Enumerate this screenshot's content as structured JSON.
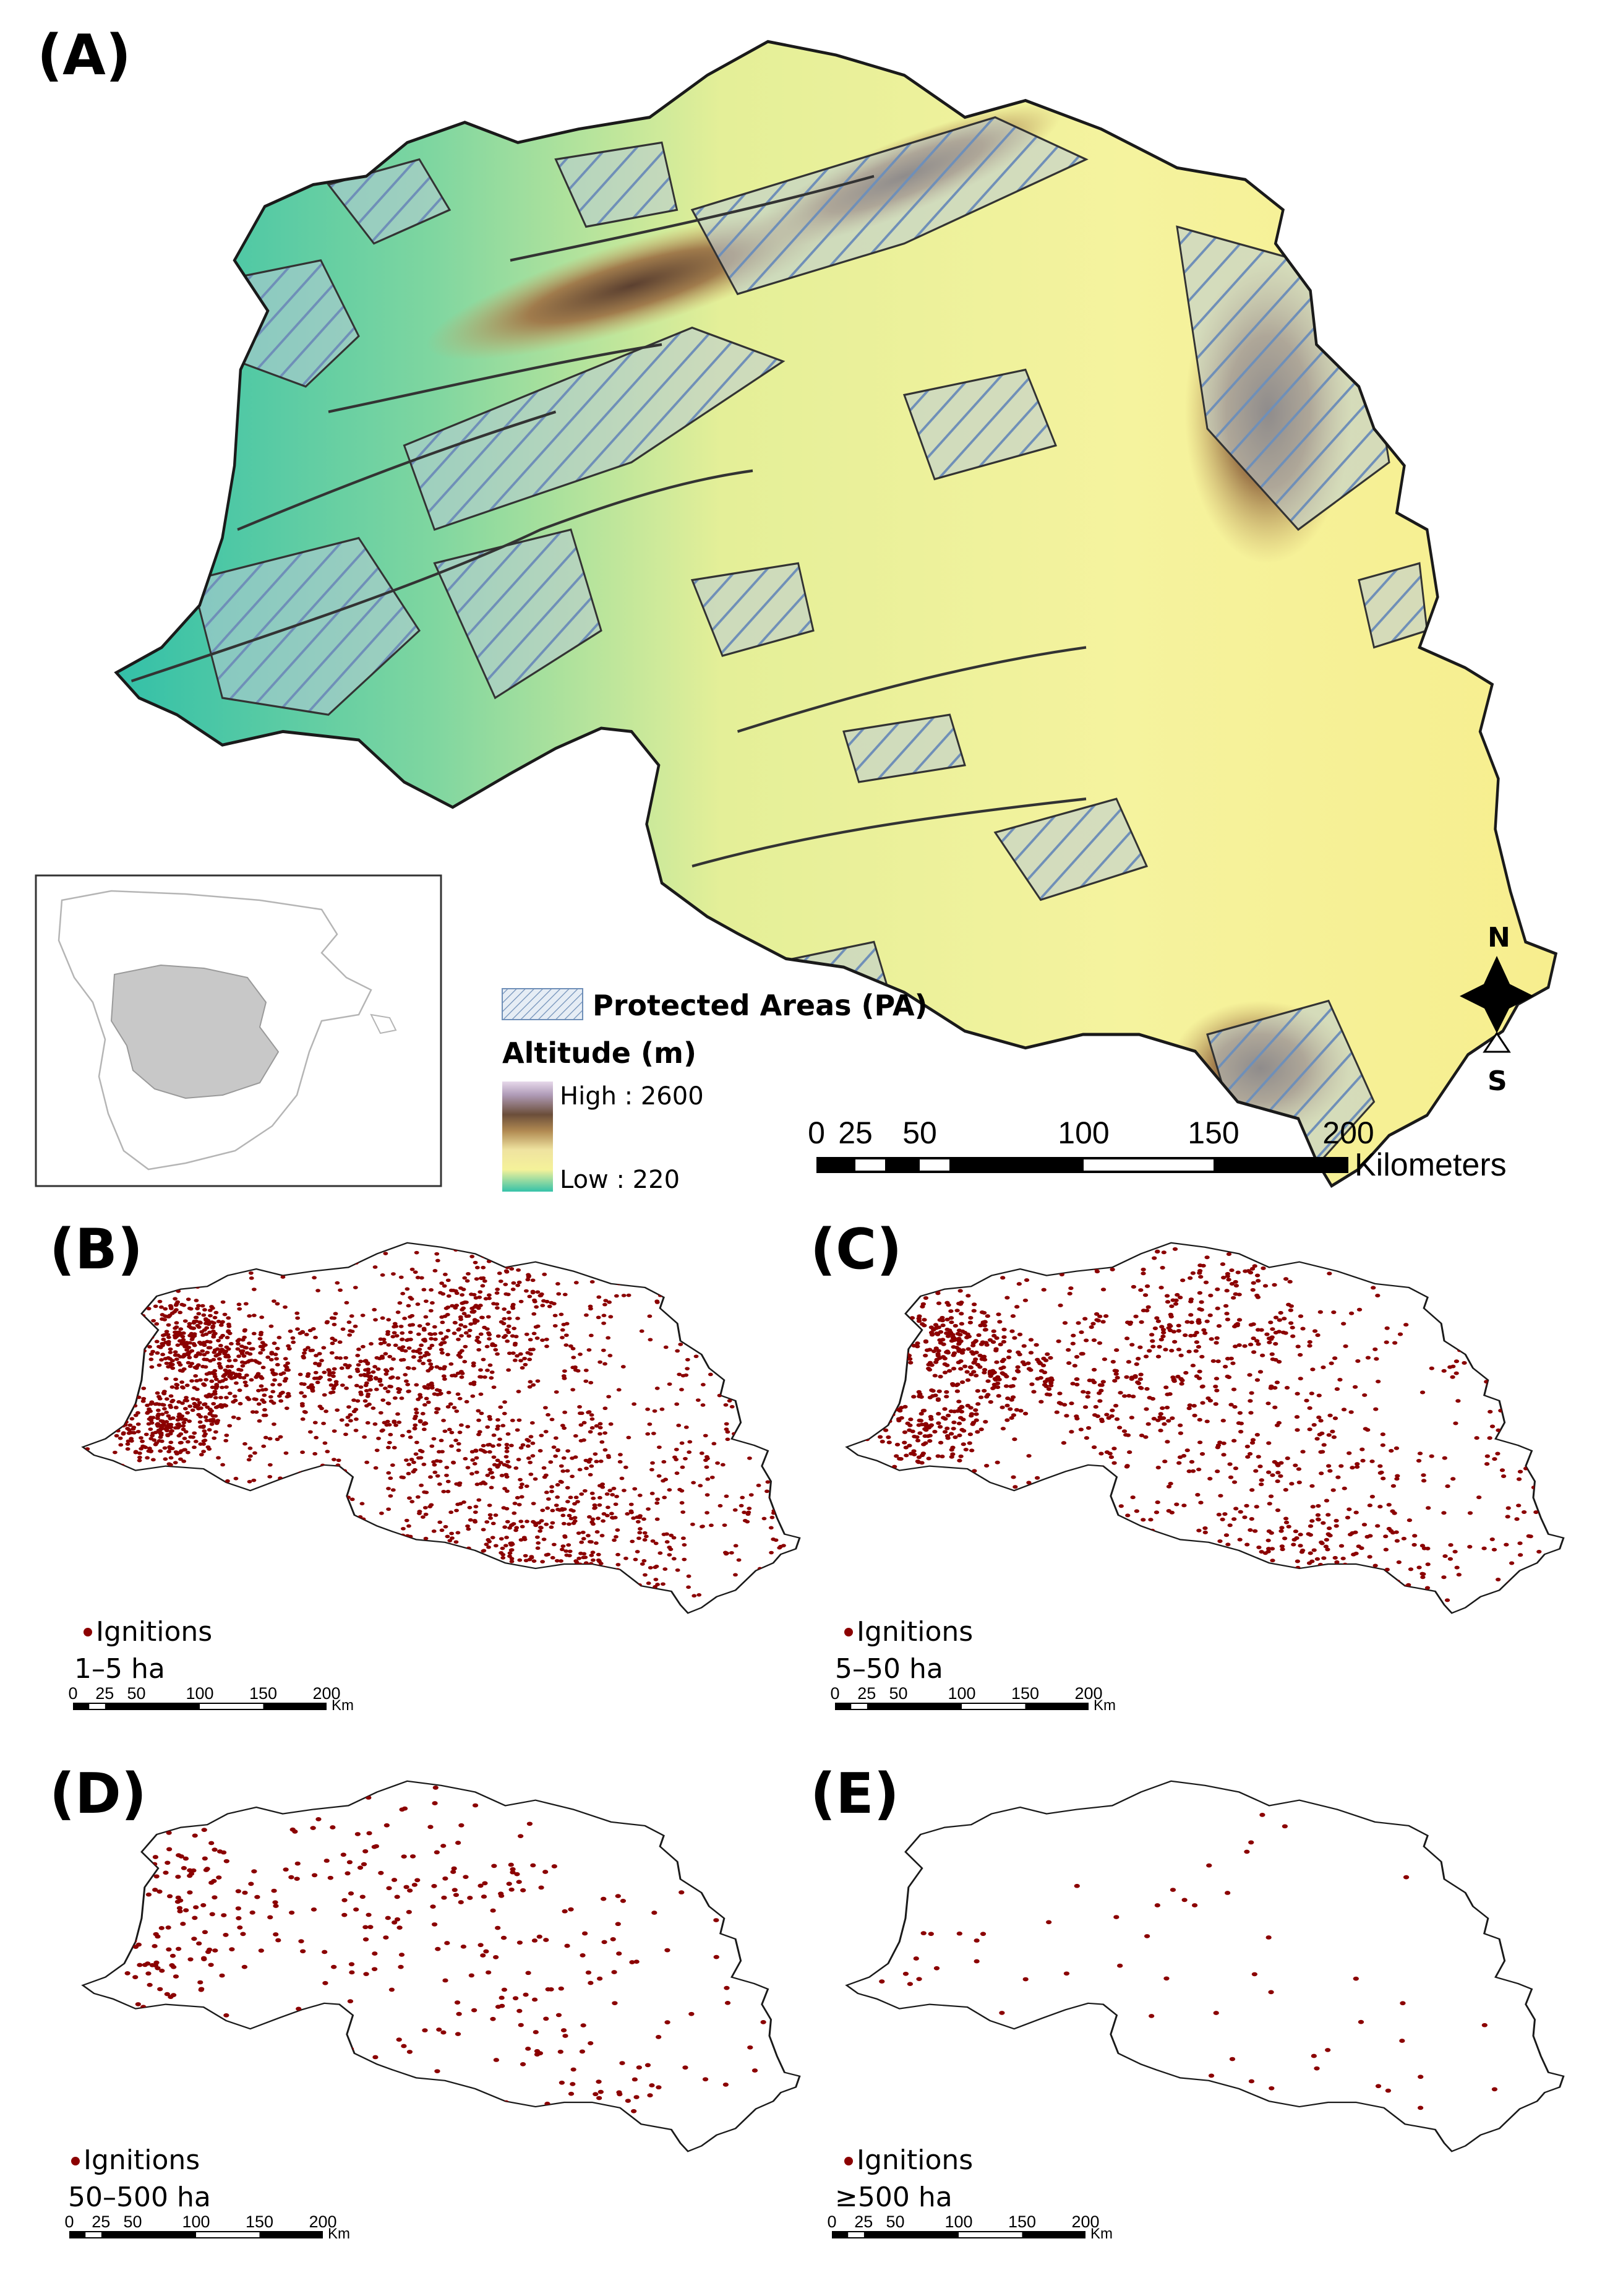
{
  "panels": {
    "a": {
      "label": "(A)"
    },
    "b": {
      "label": "(B)",
      "legend_label": "Ignitions",
      "size_class": "1–5 ha",
      "point_density": 2600
    },
    "c": {
      "label": "(C)",
      "legend_label": "Ignitions",
      "size_class": "5–50 ha",
      "point_density": 1500
    },
    "d": {
      "label": "(D)",
      "legend_label": "Ignitions",
      "size_class": "50–500 ha",
      "point_density": 420
    },
    "e": {
      "label": "(E)",
      "legend_label": "Ignitions",
      "size_class": "≥500 ha",
      "point_density": 70
    }
  },
  "legend": {
    "protected_areas": "Protected Areas (PA)",
    "altitude_title": "Altitude (m)",
    "high_label": "High : 2600",
    "low_label": "Low : 220"
  },
  "scalebar_main": {
    "ticks": [
      "0",
      "25",
      "50",
      "100",
      "150",
      "200"
    ],
    "unit": "Kilometers"
  },
  "scalebar_small": {
    "ticks": [
      "0",
      "25",
      "50",
      "100",
      "150",
      "200"
    ],
    "unit": "Km"
  },
  "compass": {
    "north": "N",
    "south": "S"
  },
  "colors": {
    "ignition_dot": "#8b0000",
    "region_outline": "#1a1a1a",
    "low_altitude": "#2ec0a8",
    "mid_altitude": "#f4f29a",
    "high_altitude": "#7a5a30",
    "peak_altitude": "#c9b8d0",
    "inset_region": "#c8c8c8"
  }
}
